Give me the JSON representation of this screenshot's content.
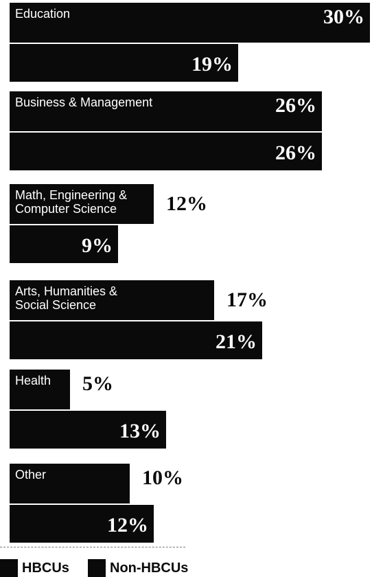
{
  "chart_data": {
    "type": "bar",
    "orientation": "horizontal",
    "categories": [
      "Education",
      "Business & Management",
      "Math, Engineering &\nComputer Science",
      "Arts, Humanities &\nSocial Science",
      "Health",
      "Other"
    ],
    "series": [
      {
        "name": "HBCUs",
        "values": [
          30,
          26,
          12,
          17,
          5,
          10
        ],
        "labels": [
          "30%",
          "26%",
          "12%",
          "17%",
          "5%",
          "10%"
        ]
      },
      {
        "name": "Non-HBCUs",
        "values": [
          19,
          26,
          9,
          21,
          13,
          12
        ],
        "labels": [
          "19%",
          "26%",
          "9%",
          "21%",
          "13%",
          "12%"
        ]
      }
    ],
    "colors": {
      "bar": "#0a0a0a",
      "text_on_bar": "#ffffff"
    },
    "legend": "bottom-left",
    "grid": false
  }
}
